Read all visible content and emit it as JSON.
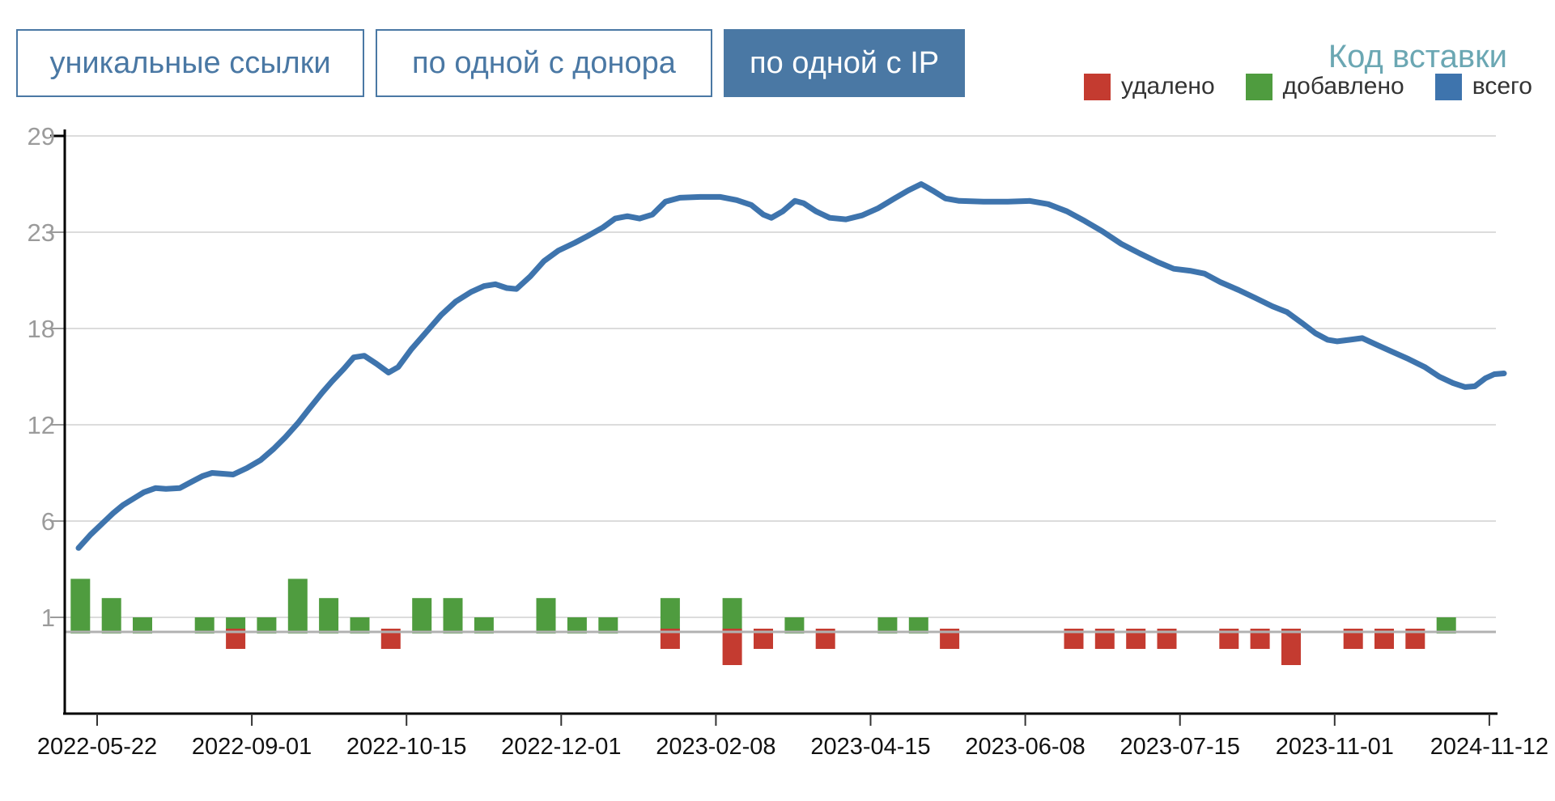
{
  "tabs": [
    {
      "label": "уникальные ссылки",
      "active": false
    },
    {
      "label": "по одной с донора",
      "active": false
    },
    {
      "label": "по одной с IP",
      "active": true
    }
  ],
  "embed_link": {
    "label": "Код вставки"
  },
  "legend": {
    "items": [
      {
        "label": "удалено",
        "color": "#c43b30"
      },
      {
        "label": "добавлено",
        "color": "#4f9c3f"
      },
      {
        "label": "всего",
        "color": "#3e74ad"
      }
    ]
  },
  "chart_data": {
    "type": "mixed",
    "title": "",
    "xlabel": "",
    "ylabel": "",
    "grid": true,
    "legend_position": "top-right",
    "ylim": [
      0,
      29
    ],
    "y_ticks": [
      29,
      23,
      18,
      12,
      6,
      1
    ],
    "x_ticks": [
      "2022-05-22",
      "2022-09-01",
      "2022-10-15",
      "2022-12-01",
      "2023-02-08",
      "2023-04-15",
      "2023-06-08",
      "2023-07-15",
      "2023-11-01",
      "2024-11-12"
    ],
    "series": [
      {
        "name": "всего",
        "type": "line",
        "color": "#3e74ad",
        "points": [
          [
            97,
            4.6
          ],
          [
            112,
            5.3
          ],
          [
            127,
            5.9
          ],
          [
            140,
            6.5
          ],
          [
            152,
            7.0
          ],
          [
            165,
            7.4
          ],
          [
            178,
            7.8
          ],
          [
            192,
            8.05
          ],
          [
            205,
            8.0
          ],
          [
            222,
            8.05
          ],
          [
            235,
            8.4
          ],
          [
            250,
            8.8
          ],
          [
            262,
            9.0
          ],
          [
            275,
            8.95
          ],
          [
            288,
            8.9
          ],
          [
            305,
            9.3
          ],
          [
            322,
            9.8
          ],
          [
            338,
            10.5
          ],
          [
            352,
            11.2
          ],
          [
            368,
            12.1
          ],
          [
            382,
            13.0
          ],
          [
            398,
            14.0
          ],
          [
            410,
            14.7
          ],
          [
            425,
            15.5
          ],
          [
            437,
            16.2
          ],
          [
            450,
            16.3
          ],
          [
            465,
            15.8
          ],
          [
            480,
            15.25
          ],
          [
            492,
            15.6
          ],
          [
            508,
            16.7
          ],
          [
            527,
            17.8
          ],
          [
            545,
            18.7
          ],
          [
            563,
            19.4
          ],
          [
            582,
            19.9
          ],
          [
            598,
            20.2
          ],
          [
            612,
            20.3
          ],
          [
            626,
            20.1
          ],
          [
            638,
            20.05
          ],
          [
            655,
            20.7
          ],
          [
            672,
            21.5
          ],
          [
            690,
            22.05
          ],
          [
            710,
            22.45
          ],
          [
            728,
            22.85
          ],
          [
            745,
            23.3
          ],
          [
            760,
            23.85
          ],
          [
            775,
            24.0
          ],
          [
            790,
            23.85
          ],
          [
            806,
            24.1
          ],
          [
            822,
            24.9
          ],
          [
            840,
            25.15
          ],
          [
            865,
            25.2
          ],
          [
            890,
            25.2
          ],
          [
            910,
            25.0
          ],
          [
            928,
            24.7
          ],
          [
            943,
            24.1
          ],
          [
            953,
            23.9
          ],
          [
            967,
            24.3
          ],
          [
            982,
            24.95
          ],
          [
            993,
            24.8
          ],
          [
            1008,
            24.3
          ],
          [
            1025,
            23.9
          ],
          [
            1045,
            23.8
          ],
          [
            1065,
            24.05
          ],
          [
            1085,
            24.5
          ],
          [
            1105,
            25.1
          ],
          [
            1122,
            25.6
          ],
          [
            1138,
            26.0
          ],
          [
            1152,
            25.6
          ],
          [
            1168,
            25.1
          ],
          [
            1185,
            24.95
          ],
          [
            1215,
            24.9
          ],
          [
            1245,
            24.9
          ],
          [
            1272,
            24.95
          ],
          [
            1295,
            24.75
          ],
          [
            1318,
            24.3
          ],
          [
            1340,
            23.7
          ],
          [
            1362,
            23.05
          ],
          [
            1385,
            22.4
          ],
          [
            1408,
            21.9
          ],
          [
            1430,
            21.45
          ],
          [
            1450,
            21.1
          ],
          [
            1470,
            21.0
          ],
          [
            1488,
            20.85
          ],
          [
            1508,
            20.4
          ],
          [
            1530,
            20.0
          ],
          [
            1550,
            19.6
          ],
          [
            1572,
            19.15
          ],
          [
            1590,
            18.85
          ],
          [
            1608,
            18.3
          ],
          [
            1625,
            17.7
          ],
          [
            1640,
            17.3
          ],
          [
            1652,
            17.2
          ],
          [
            1668,
            17.3
          ],
          [
            1683,
            17.4
          ],
          [
            1700,
            17.0
          ],
          [
            1720,
            16.55
          ],
          [
            1740,
            16.1
          ],
          [
            1760,
            15.6
          ],
          [
            1778,
            15.0
          ],
          [
            1795,
            14.6
          ],
          [
            1810,
            14.35
          ],
          [
            1822,
            14.4
          ],
          [
            1835,
            14.9
          ],
          [
            1846,
            15.15
          ],
          [
            1858,
            15.2
          ]
        ]
      },
      {
        "name": "добавлено",
        "type": "bar",
        "color": "#4f9c3f",
        "values": [
          3,
          2,
          1,
          0,
          1,
          1,
          1,
          3,
          2,
          1,
          0,
          2,
          2,
          1,
          0,
          2,
          1,
          1,
          0,
          2,
          0,
          2,
          0,
          1,
          0,
          0,
          1,
          1,
          0,
          0,
          0,
          0,
          0,
          0,
          0,
          0,
          0,
          0,
          0,
          0,
          0,
          0,
          0,
          0,
          1,
          0
        ]
      },
      {
        "name": "удалено",
        "type": "bar",
        "color": "#c43b30",
        "values": [
          0,
          0,
          0,
          0,
          0,
          1,
          0,
          0,
          0,
          0,
          1,
          0,
          0,
          0,
          0,
          0,
          0,
          0,
          0,
          1,
          0,
          2,
          1,
          0,
          1,
          0,
          0,
          0,
          1,
          0,
          0,
          0,
          1,
          1,
          1,
          1,
          0,
          1,
          1,
          2,
          0,
          1,
          1,
          1,
          0,
          0
        ]
      }
    ]
  }
}
